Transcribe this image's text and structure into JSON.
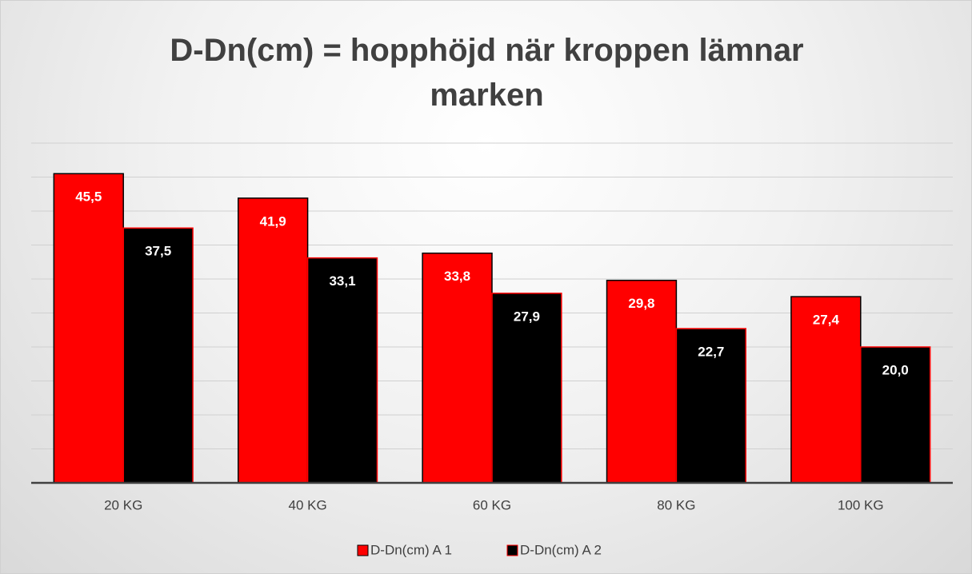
{
  "chart_data": {
    "type": "bar",
    "title": "D-Dn(cm) = hopphöjd när kroppen lämnar marken",
    "categories": [
      "20 KG",
      "40 KG",
      "60 KG",
      "80 KG",
      "100 KG"
    ],
    "series": [
      {
        "name": "D-Dn(cm) A 1",
        "color": "#ff0000",
        "values": [
          45.5,
          41.9,
          33.8,
          29.8,
          27.4
        ],
        "value_labels": [
          "45,5",
          "41,9",
          "33,8",
          "29,8",
          "27,4"
        ]
      },
      {
        "name": "D-Dn(cm) A 2",
        "color": "#000000",
        "values": [
          37.5,
          33.1,
          27.9,
          22.7,
          20.0
        ],
        "value_labels": [
          "37,5",
          "33,1",
          "27,9",
          "22,7",
          "20,0"
        ]
      }
    ],
    "ylim": [
      0,
      50
    ],
    "yticks": [
      0,
      5,
      10,
      15,
      20,
      25,
      30,
      35,
      40,
      45,
      50
    ],
    "grid": true,
    "legend": "bottom"
  }
}
